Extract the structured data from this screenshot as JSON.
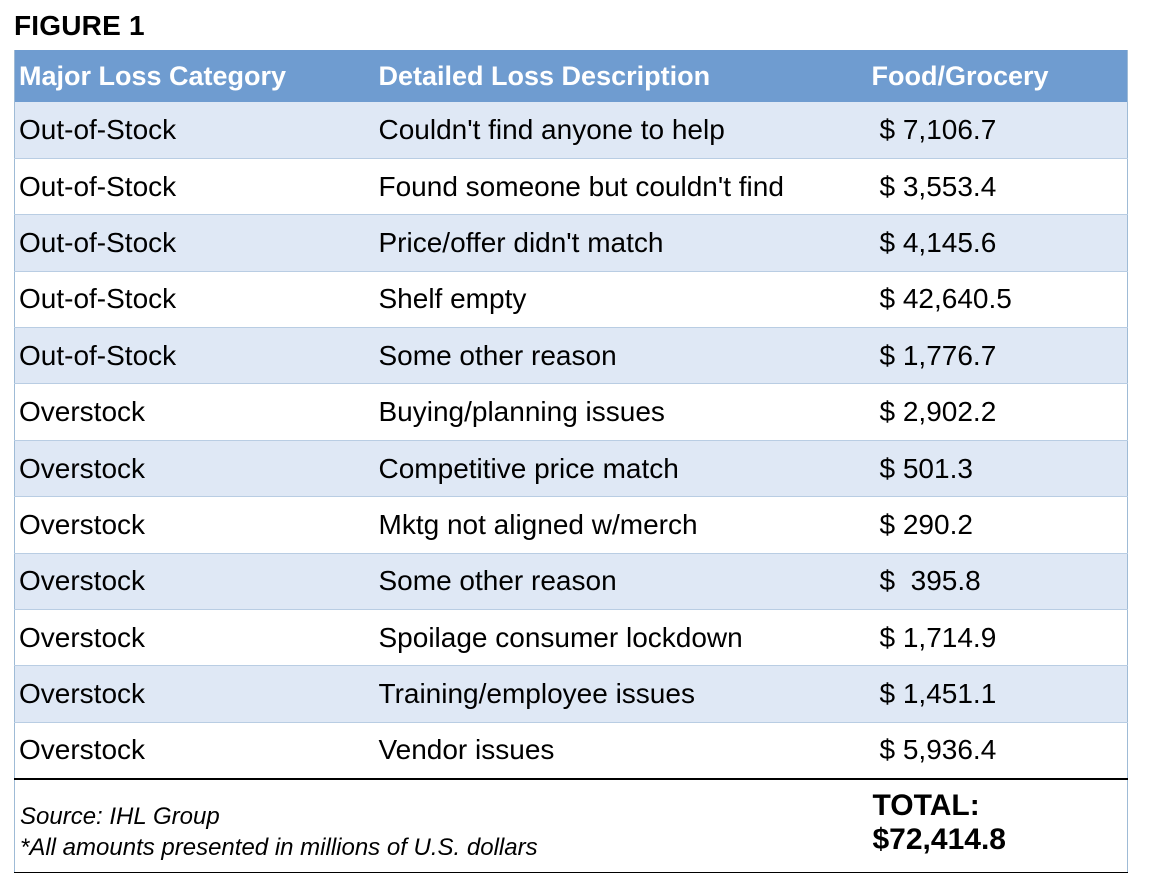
{
  "figure_label": "FIGURE 1",
  "headers": [
    "Major Loss Category",
    "Detailed Loss Description",
    "Food/Grocery"
  ],
  "rows": [
    {
      "category": "Out-of-Stock",
      "description": "Couldn't find anyone to help",
      "value": "$ 7,106.7"
    },
    {
      "category": "Out-of-Stock",
      "description": "Found someone but couldn't find",
      "value": "$ 3,553.4"
    },
    {
      "category": "Out-of-Stock",
      "description": "Price/offer didn't match",
      "value": "$ 4,145.6"
    },
    {
      "category": "Out-of-Stock",
      "description": "Shelf empty",
      "value": "$ 42,640.5"
    },
    {
      "category": "Out-of-Stock",
      "description": "Some other reason",
      "value": "$ 1,776.7"
    },
    {
      "category": "Overstock",
      "description": "Buying/planning issues",
      "value": "$ 2,902.2"
    },
    {
      "category": "Overstock",
      "description": "Competitive price match",
      "value": "$ 501.3"
    },
    {
      "category": "Overstock",
      "description": "Mktg not aligned w/merch",
      "value": "$ 290.2"
    },
    {
      "category": "Overstock",
      "description": "Some other reason",
      "value": "$  395.8"
    },
    {
      "category": "Overstock",
      "description": "Spoilage consumer lockdown",
      "value": "$ 1,714.9"
    },
    {
      "category": "Overstock",
      "description": "Training/employee issues",
      "value": "$ 1,451.1"
    },
    {
      "category": "Overstock",
      "description": "Vendor issues",
      "value": "$ 5,936.4"
    }
  ],
  "footer": {
    "source": "Source: IHL Group",
    "note": "*All amounts presented in millions of U.S. dollars",
    "total_label": "TOTAL:",
    "total_value": "$72,414.8"
  }
}
